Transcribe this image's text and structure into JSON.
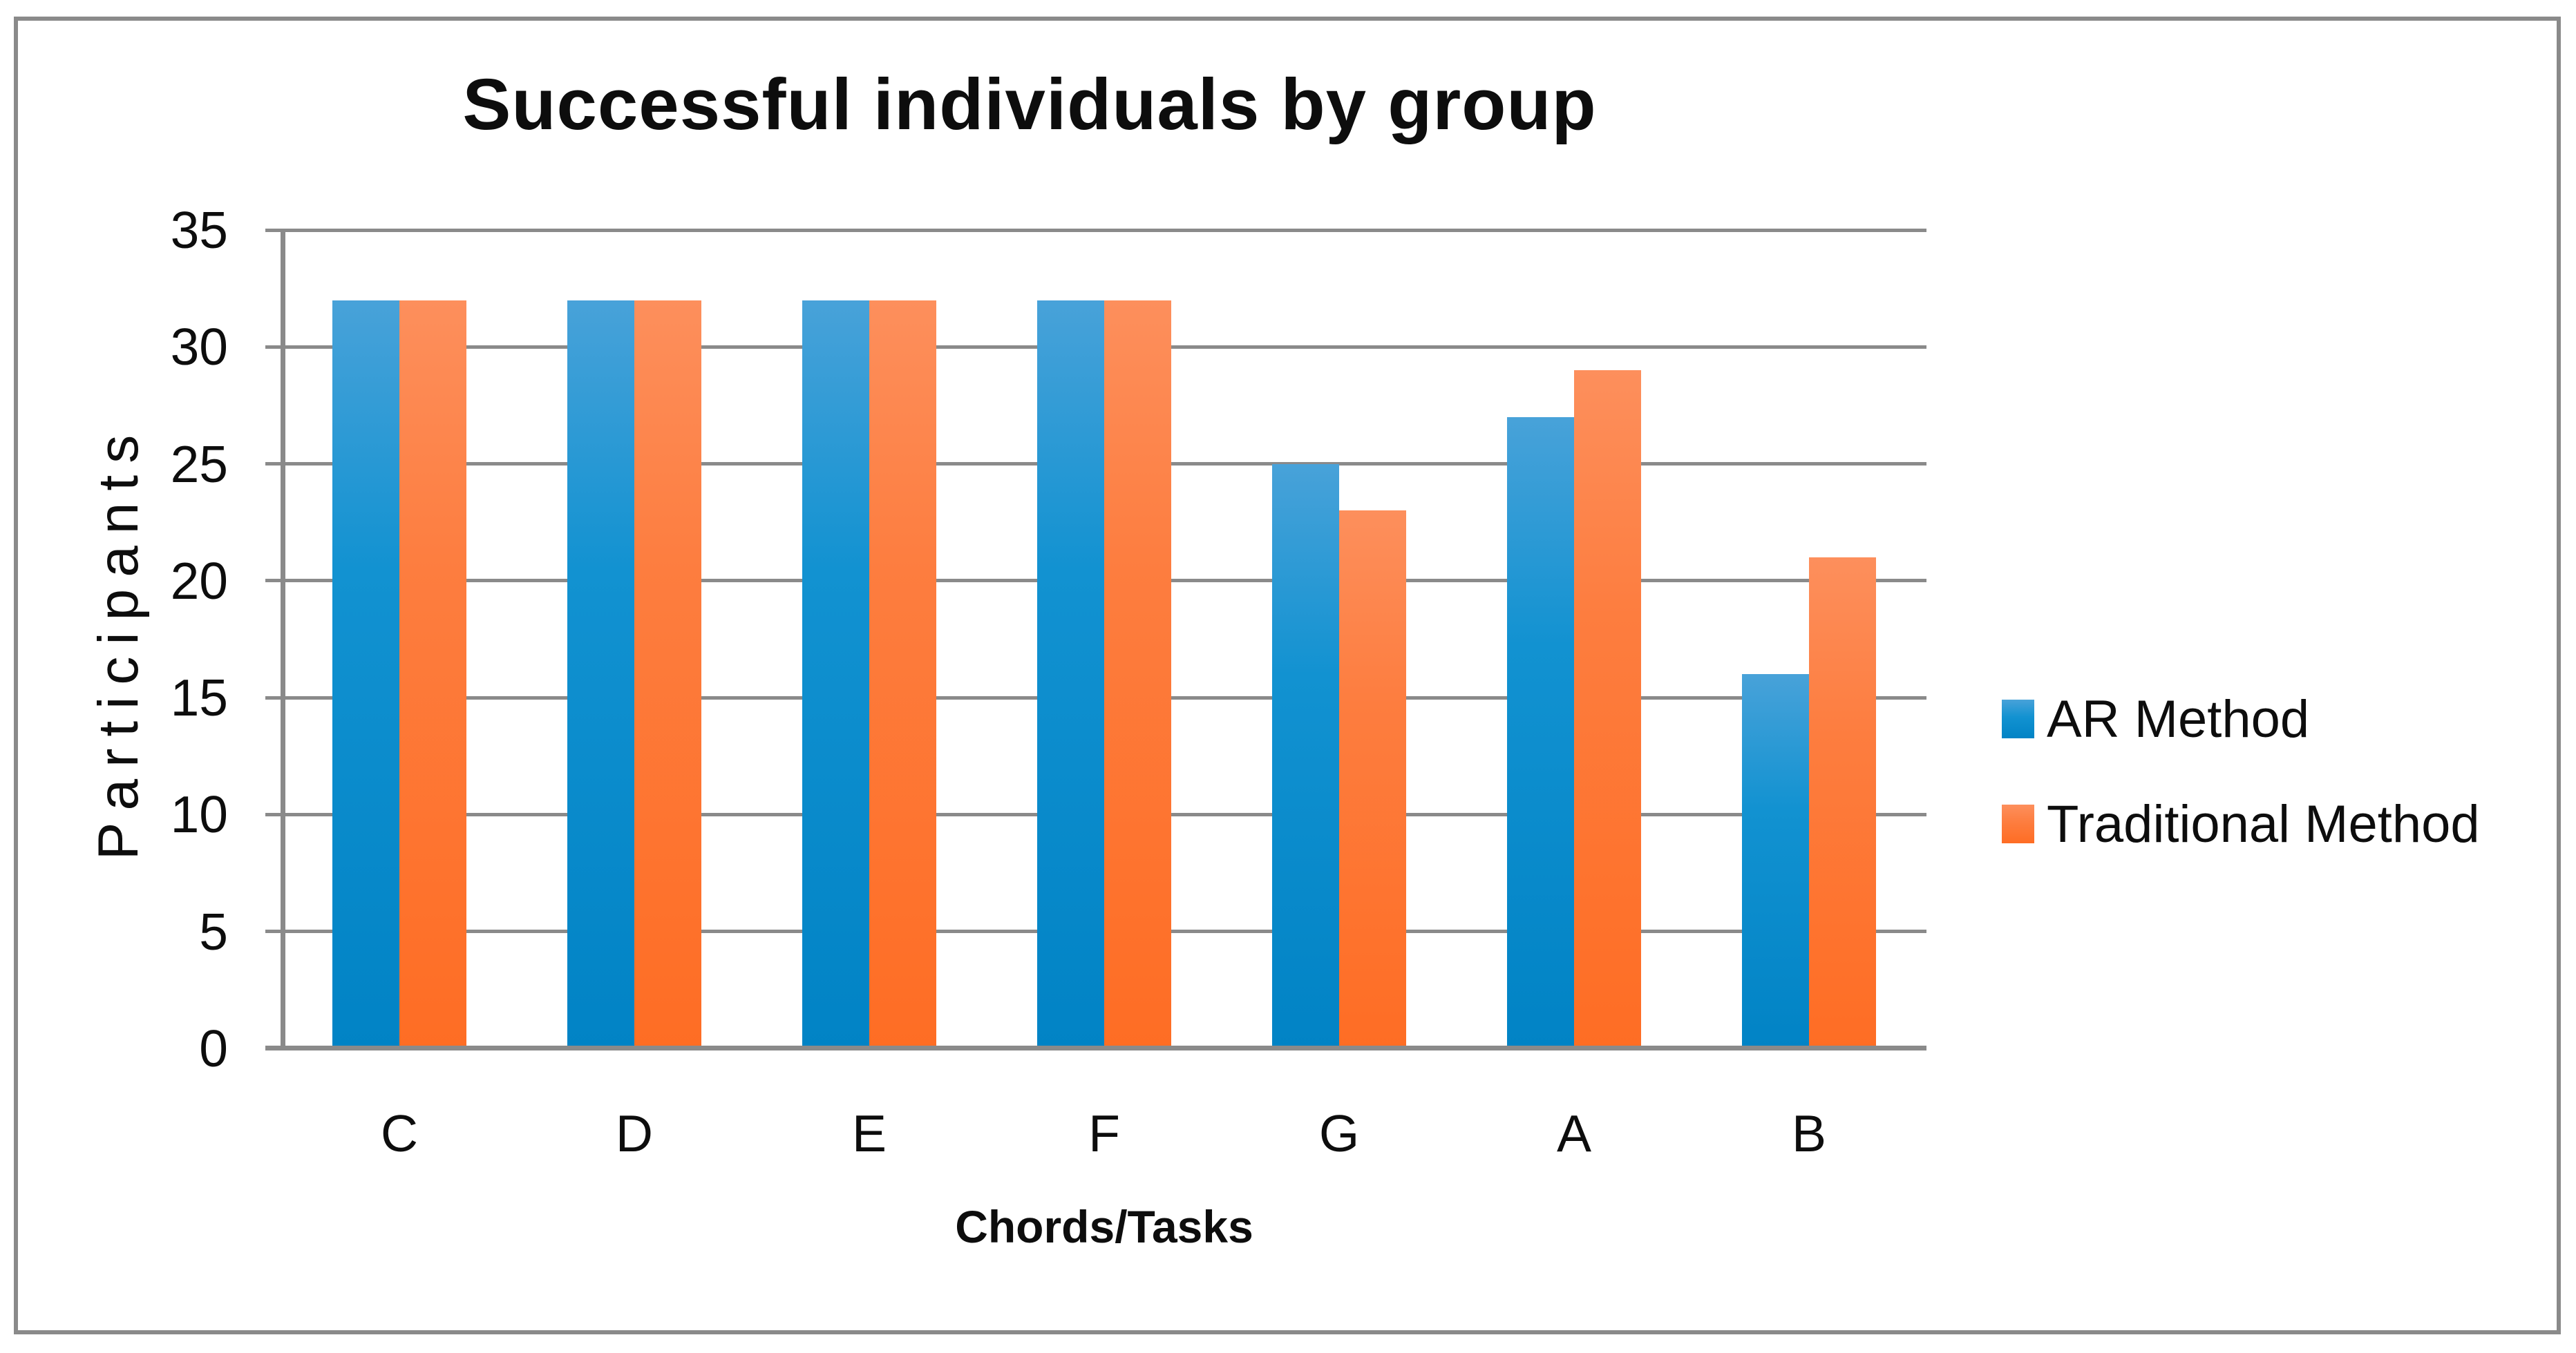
{
  "chart_data": {
    "type": "bar",
    "title": "Successful individuals by group",
    "xlabel": "Chords/Tasks",
    "ylabel": "Participants",
    "categories": [
      "C",
      "D",
      "E",
      "F",
      "G",
      "A",
      "B"
    ],
    "series": [
      {
        "name": "AR Method",
        "values": [
          32,
          32,
          32,
          32,
          25,
          27,
          16
        ],
        "color_top": "#48a2d9",
        "color_mid": "#1292d1",
        "color_bottom": "#0183c5"
      },
      {
        "name": "Traditional Method",
        "values": [
          32,
          32,
          32,
          32,
          23,
          29,
          21
        ],
        "color_top": "#fd8f5c",
        "color_mid": "#fd7d3f",
        "color_bottom": "#fe6d24"
      }
    ],
    "ylim": [
      0,
      35
    ],
    "yticks": [
      0,
      5,
      10,
      15,
      20,
      25,
      30,
      35
    ],
    "grid": "horizontal-only",
    "grid_color": "#8a8a8a",
    "axis_color": "#8a8a8a",
    "border_color": "#8a8a8a",
    "legend_position": "right-middle",
    "background": "#ffffff",
    "text_color": "#0d0d0d"
  }
}
